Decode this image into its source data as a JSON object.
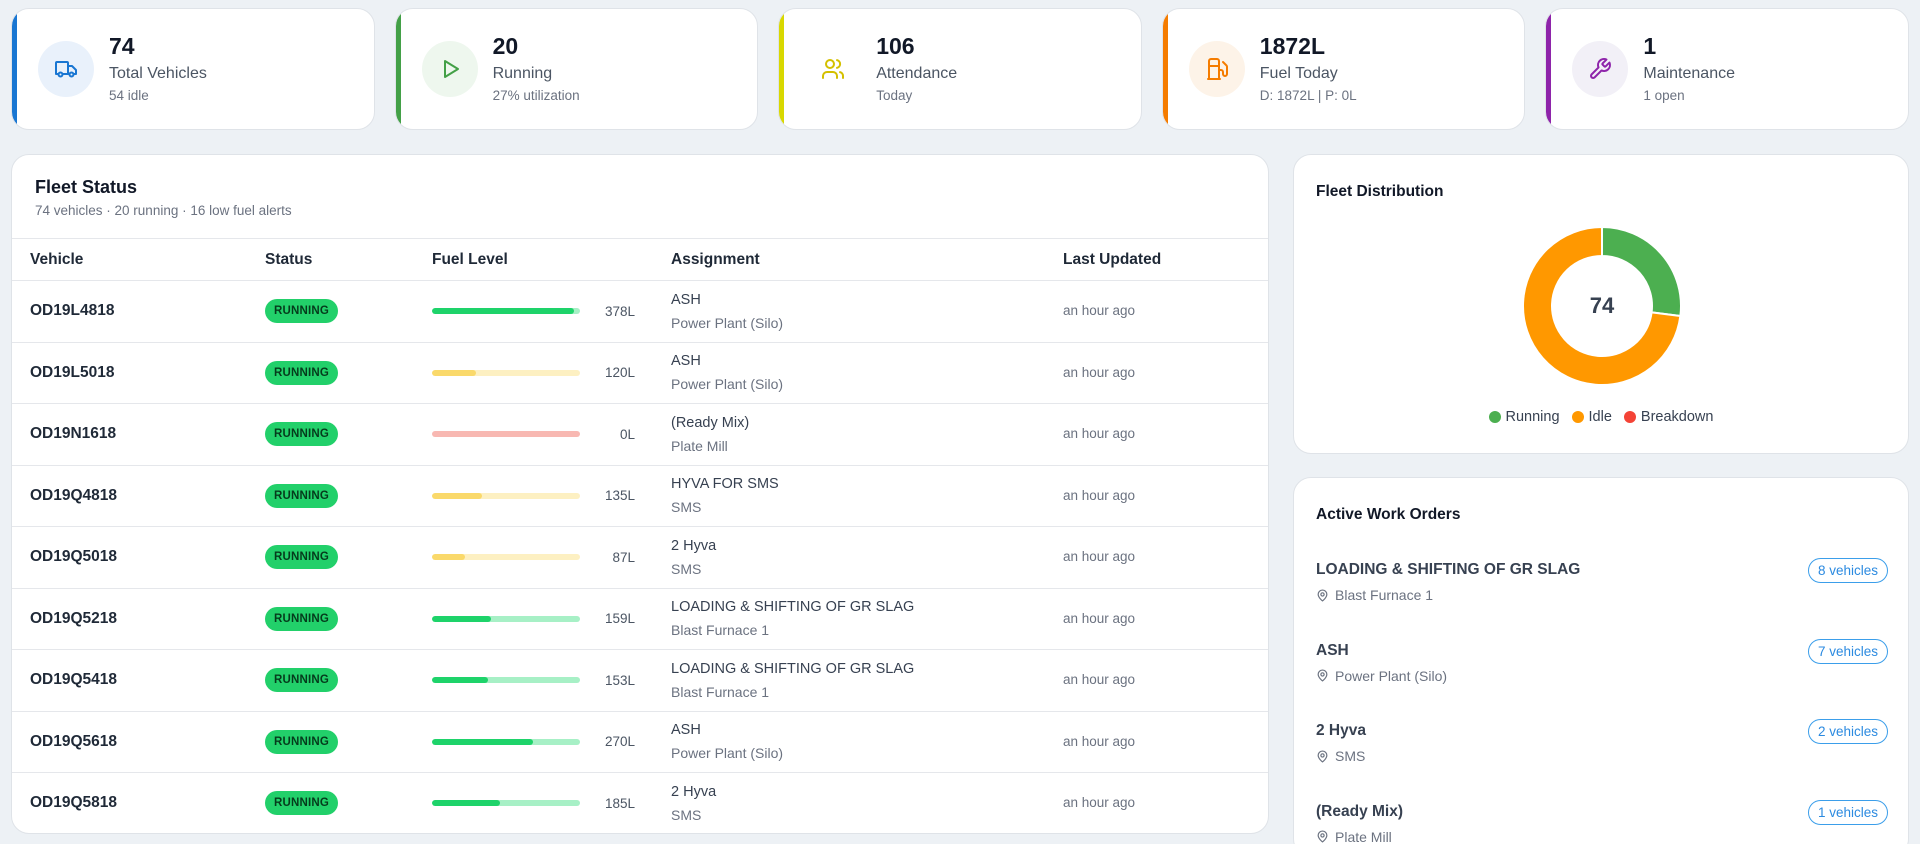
{
  "stats": [
    {
      "value": "74",
      "label": "Total Vehicles",
      "sub": "54 idle",
      "icon": "truck-icon",
      "accent": "#1976d2"
    },
    {
      "value": "20",
      "label": "Running",
      "sub": "27% utilization",
      "icon": "play-icon",
      "accent": "#43a047"
    },
    {
      "value": "106",
      "label": "Attendance",
      "sub": "Today",
      "icon": "users-icon",
      "accent": "#d8d800"
    },
    {
      "value": "1872L",
      "label": "Fuel Today",
      "sub": "D: 1872L | P: 0L",
      "icon": "fuel-pump-icon",
      "accent": "#f57c00"
    },
    {
      "value": "1",
      "label": "Maintenance",
      "sub": "1 open",
      "icon": "wrench-icon",
      "accent": "#8e24aa"
    }
  ],
  "fleet": {
    "title": "Fleet Status",
    "subtitle": "74 vehicles · 20 running · 16 low fuel alerts",
    "columns": [
      "Vehicle",
      "Status",
      "Fuel Level",
      "Assignment",
      "Last Updated"
    ],
    "rows": [
      {
        "vehicle": "OD19L4818",
        "status": "RUNNING",
        "fuel": "378L",
        "fuel_pct": 0.96,
        "level": "high",
        "assignment": "ASH",
        "location": "Power Plant (Silo)",
        "updated": "an hour ago"
      },
      {
        "vehicle": "OD19L5018",
        "status": "RUNNING",
        "fuel": "120L",
        "fuel_pct": 0.3,
        "level": "medium",
        "assignment": "ASH",
        "location": "Power Plant (Silo)",
        "updated": "an hour ago"
      },
      {
        "vehicle": "OD19N1618",
        "status": "RUNNING",
        "fuel": "0L",
        "fuel_pct": 0.0,
        "level": "low",
        "assignment": "(Ready Mix)",
        "location": "Plate Mill",
        "updated": "an hour ago"
      },
      {
        "vehicle": "OD19Q4818",
        "status": "RUNNING",
        "fuel": "135L",
        "fuel_pct": 0.34,
        "level": "medium",
        "assignment": "HYVA FOR SMS",
        "location": "SMS",
        "updated": "an hour ago"
      },
      {
        "vehicle": "OD19Q5018",
        "status": "RUNNING",
        "fuel": "87L",
        "fuel_pct": 0.22,
        "level": "medium",
        "assignment": "2 Hyva",
        "location": "SMS",
        "updated": "an hour ago"
      },
      {
        "vehicle": "OD19Q5218",
        "status": "RUNNING",
        "fuel": "159L",
        "fuel_pct": 0.4,
        "level": "high",
        "assignment": "LOADING & SHIFTING OF GR SLAG",
        "location": "Blast Furnace 1",
        "updated": "an hour ago"
      },
      {
        "vehicle": "OD19Q5418",
        "status": "RUNNING",
        "fuel": "153L",
        "fuel_pct": 0.38,
        "level": "high",
        "assignment": "LOADING & SHIFTING OF GR SLAG",
        "location": "Blast Furnace 1",
        "updated": "an hour ago"
      },
      {
        "vehicle": "OD19Q5618",
        "status": "RUNNING",
        "fuel": "270L",
        "fuel_pct": 0.68,
        "level": "high",
        "assignment": "ASH",
        "location": "Power Plant (Silo)",
        "updated": "an hour ago"
      },
      {
        "vehicle": "OD19Q5818",
        "status": "RUNNING",
        "fuel": "185L",
        "fuel_pct": 0.46,
        "level": "high",
        "assignment": "2 Hyva",
        "location": "SMS",
        "updated": "an hour ago"
      }
    ]
  },
  "distribution": {
    "title": "Fleet Distribution",
    "total": "74",
    "legend": [
      "Running",
      "Idle",
      "Breakdown"
    ],
    "colors": {
      "running": "#4caf50",
      "idle": "#ff9800",
      "breakdown": "#f44336"
    },
    "chart_data": {
      "type": "pie",
      "categories": [
        "Running",
        "Idle",
        "Breakdown"
      ],
      "values": [
        20,
        54,
        0
      ]
    }
  },
  "work_orders": {
    "title": "Active Work Orders",
    "items": [
      {
        "name": "LOADING & SHIFTING OF GR SLAG",
        "location": "Blast Furnace 1",
        "count": "8 vehicles"
      },
      {
        "name": "ASH",
        "location": "Power Plant (Silo)",
        "count": "7 vehicles"
      },
      {
        "name": "2 Hyva",
        "location": "SMS",
        "count": "2 vehicles"
      },
      {
        "name": "(Ready Mix)",
        "location": "Plate Mill",
        "count": "1 vehicles"
      }
    ]
  }
}
